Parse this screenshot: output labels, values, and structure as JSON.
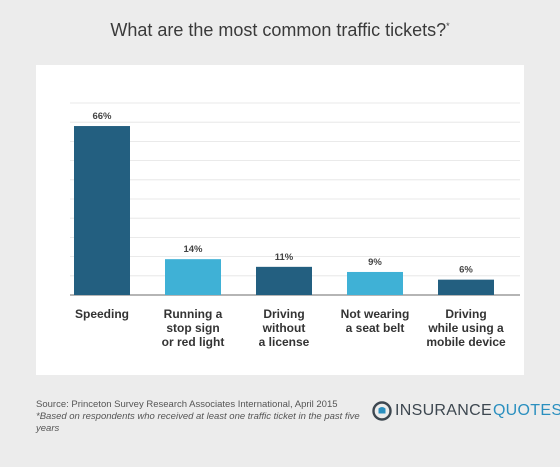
{
  "title": "What are the most common traffic tickets?",
  "title_marker": "*",
  "chart_data": {
    "type": "bar",
    "categories": [
      [
        "Speeding"
      ],
      [
        "Running a",
        "stop sign",
        "or red light"
      ],
      [
        "Driving",
        "without",
        "a license"
      ],
      [
        "Not wearing",
        "a seat belt"
      ],
      [
        "Driving",
        "while using a",
        "mobile device"
      ]
    ],
    "values": [
      66,
      14,
      11,
      9,
      6
    ],
    "value_labels": [
      "66%",
      "14%",
      "11%",
      "9%",
      "6%"
    ],
    "bar_colors": [
      "#235f80",
      "#3fb1d6",
      "#235f80",
      "#3fb1d6",
      "#235f80"
    ],
    "ylim": [
      0,
      75
    ],
    "grid": true,
    "title": "What are the most common traffic tickets?",
    "xlabel": "",
    "ylabel": ""
  },
  "footer": {
    "source": "Source: Princeton Survey Research Associates International, April 2015",
    "note": "*Based on respondents who received at least one traffic ticket in the past five years"
  },
  "logo": {
    "word1": "INSURANCE",
    "word2": "QUOTES",
    "icon": "insurancequotes-logo-icon",
    "color_dark": "#3d4750",
    "color_accent": "#2a8fbf"
  }
}
